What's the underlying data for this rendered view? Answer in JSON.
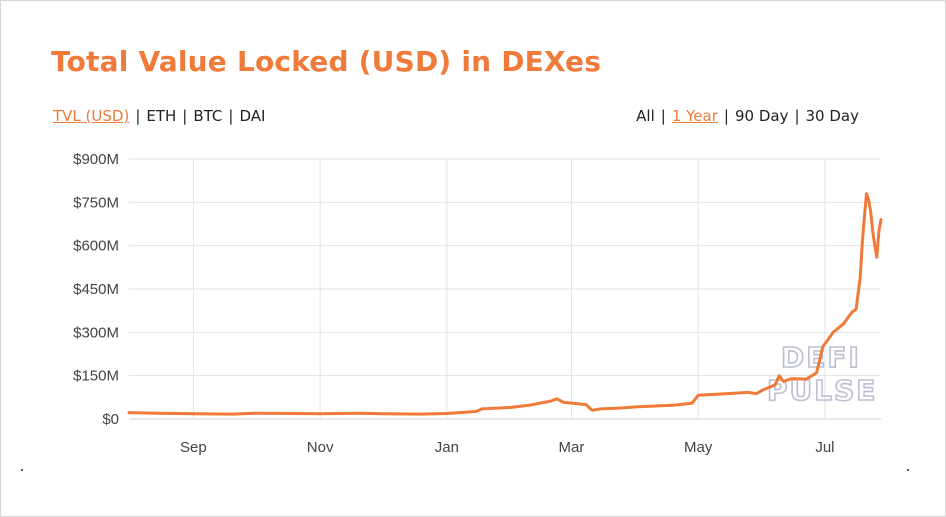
{
  "title": "Total Value Locked (USD) in DEXes",
  "currency_options": {
    "items": [
      {
        "label": "TVL (USD)",
        "active": true
      },
      {
        "label": "ETH",
        "active": false
      },
      {
        "label": "BTC",
        "active": false
      },
      {
        "label": "DAI",
        "active": false
      }
    ]
  },
  "range_options": {
    "items": [
      {
        "label": "All",
        "active": false
      },
      {
        "label": "1 Year",
        "active": true
      },
      {
        "label": "90 Day",
        "active": false
      },
      {
        "label": "30 Day",
        "active": false
      }
    ]
  },
  "separator": "|",
  "watermark": {
    "line1": "DEFI",
    "line2": "PULSE"
  },
  "colors": {
    "accent": "#f07a3a",
    "line": "#f07a3a",
    "grid": "#e3e3e3",
    "watermark": "#bcbfd2"
  },
  "chart_data": {
    "type": "line",
    "title": "Total Value Locked (USD) in DEXes",
    "xlabel": "",
    "ylabel": "",
    "x_ticks": [
      "Sep",
      "Nov",
      "Jan",
      "Mar",
      "May",
      "Jul"
    ],
    "x_tick_dates": [
      "2019-09-01",
      "2019-11-01",
      "2020-01-01",
      "2020-03-01",
      "2020-05-01",
      "2020-07-01"
    ],
    "x_range": [
      "2019-08-01",
      "2020-07-28"
    ],
    "y_ticks": [
      "$0",
      "$150M",
      "$300M",
      "$450M",
      "$600M",
      "$750M",
      "$900M"
    ],
    "y_tick_values": [
      0,
      150,
      300,
      450,
      600,
      750,
      900
    ],
    "ylim": [
      0,
      900
    ],
    "y_unit": "M USD",
    "grid": true,
    "legend": "none",
    "series": [
      {
        "name": "TVL (USD)",
        "points": [
          [
            "2019-08-01",
            22
          ],
          [
            "2019-08-15",
            20
          ],
          [
            "2019-09-01",
            18
          ],
          [
            "2019-09-20",
            17
          ],
          [
            "2019-10-01",
            20
          ],
          [
            "2019-10-20",
            19
          ],
          [
            "2019-11-01",
            18
          ],
          [
            "2019-11-20",
            20
          ],
          [
            "2019-12-01",
            18
          ],
          [
            "2019-12-20",
            17
          ],
          [
            "2020-01-01",
            19
          ],
          [
            "2020-01-15",
            26
          ],
          [
            "2020-01-18",
            35
          ],
          [
            "2020-02-01",
            40
          ],
          [
            "2020-02-10",
            48
          ],
          [
            "2020-02-20",
            62
          ],
          [
            "2020-02-23",
            70
          ],
          [
            "2020-02-26",
            58
          ],
          [
            "2020-03-01",
            55
          ],
          [
            "2020-03-05",
            52
          ],
          [
            "2020-03-08",
            50
          ],
          [
            "2020-03-11",
            30
          ],
          [
            "2020-03-15",
            35
          ],
          [
            "2020-03-25",
            38
          ],
          [
            "2020-04-01",
            42
          ],
          [
            "2020-04-20",
            48
          ],
          [
            "2020-04-28",
            55
          ],
          [
            "2020-05-01",
            82
          ],
          [
            "2020-05-15",
            88
          ],
          [
            "2020-05-25",
            92
          ],
          [
            "2020-05-29",
            88
          ],
          [
            "2020-06-01",
            100
          ],
          [
            "2020-06-07",
            118
          ],
          [
            "2020-06-09",
            150
          ],
          [
            "2020-06-11",
            130
          ],
          [
            "2020-06-15",
            140
          ],
          [
            "2020-06-22",
            138
          ],
          [
            "2020-06-27",
            160
          ],
          [
            "2020-06-30",
            250
          ],
          [
            "2020-07-02",
            270
          ],
          [
            "2020-07-05",
            300
          ],
          [
            "2020-07-10",
            330
          ],
          [
            "2020-07-14",
            370
          ],
          [
            "2020-07-16",
            380
          ],
          [
            "2020-07-18",
            490
          ],
          [
            "2020-07-19",
            610
          ],
          [
            "2020-07-20",
            700
          ],
          [
            "2020-07-21",
            780
          ],
          [
            "2020-07-22",
            760
          ],
          [
            "2020-07-23",
            720
          ],
          [
            "2020-07-24",
            650
          ],
          [
            "2020-07-25",
            600
          ],
          [
            "2020-07-26",
            560
          ],
          [
            "2020-07-27",
            650
          ],
          [
            "2020-07-28",
            690
          ]
        ]
      }
    ]
  }
}
